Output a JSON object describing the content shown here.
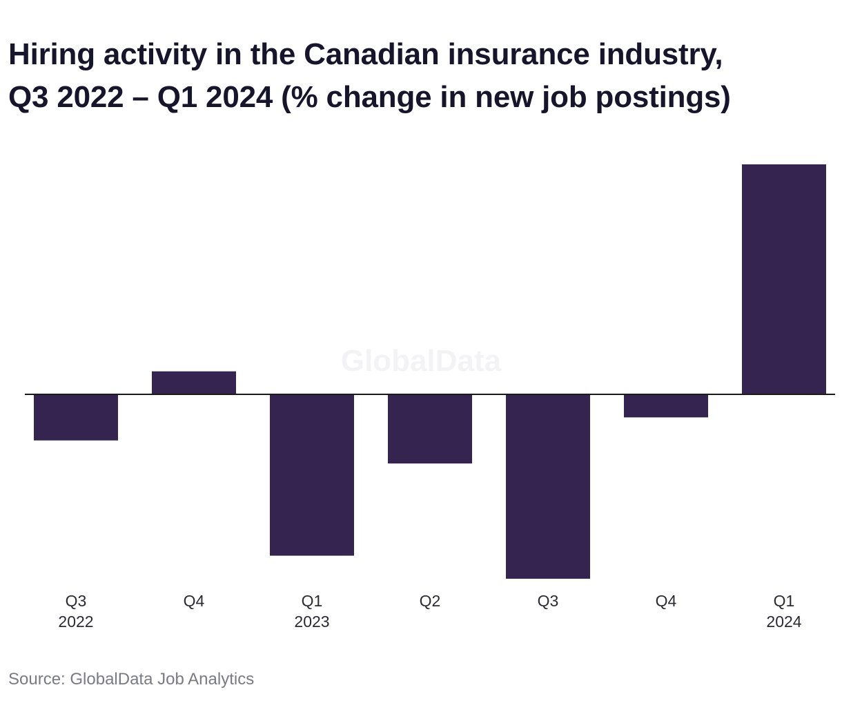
{
  "title_line1": "Hiring activity in the Canadian insurance industry,",
  "title_line2": "Q3 2022 – Q1 2024 (% change in new job postings)",
  "watermark": "GlobalData",
  "source": "Source: GlobalData Job Analytics",
  "colors": {
    "bar": "#35244f",
    "baseline": "#1a1a1a",
    "tick_label": "#2a2a35"
  },
  "chart_data": {
    "type": "bar",
    "categories": [
      "Q3 2022",
      "Q4",
      "Q1 2023",
      "Q2",
      "Q3",
      "Q4",
      "Q1 2024"
    ],
    "tick_labels": [
      [
        "Q3",
        "2022"
      ],
      [
        "Q4"
      ],
      [
        "Q1",
        "2023"
      ],
      [
        "Q2"
      ],
      [
        "Q3"
      ],
      [
        "Q4"
      ],
      [
        "Q1",
        "2024"
      ]
    ],
    "values": [
      -2.0,
      1.0,
      -7.0,
      -3.0,
      -8.0,
      -1.0,
      10.0
    ],
    "ylim": [
      -8.0,
      10.0
    ],
    "grid": false,
    "legend": "none",
    "y_axis_labels": false,
    "xlabel": "",
    "ylabel": ""
  }
}
